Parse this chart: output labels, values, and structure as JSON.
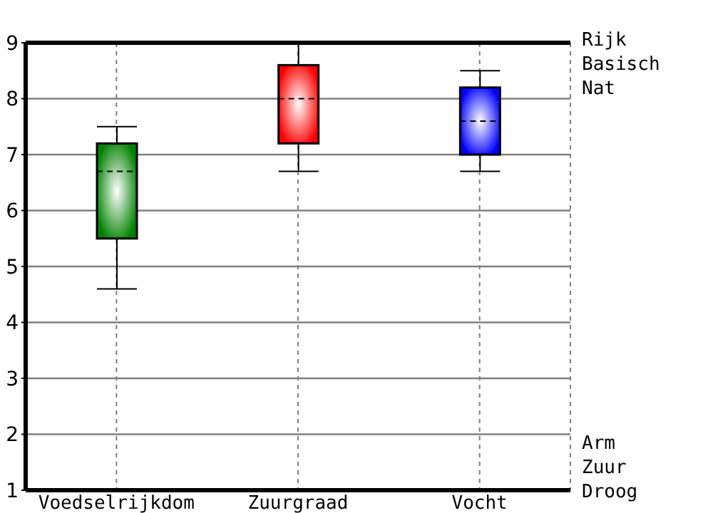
{
  "chart_data": {
    "type": "box",
    "categories": [
      "Voedselrijkdom",
      "Zuurgraad",
      "Vocht"
    ],
    "boxes": [
      {
        "low": 4.6,
        "q1": 5.5,
        "median": 6.7,
        "q3": 7.2,
        "high": 7.5
      },
      {
        "low": 6.7,
        "q1": 7.2,
        "median": 8.0,
        "q3": 8.6,
        "high": 9.0
      },
      {
        "low": 6.7,
        "q1": 7.0,
        "median": 7.6,
        "q3": 8.2,
        "high": 8.5
      }
    ],
    "colors": [
      "#008000",
      "#ff0000",
      "#0000ff"
    ],
    "ylim": [
      1,
      9
    ],
    "yticks": [
      1,
      2,
      3,
      4,
      5,
      6,
      7,
      8,
      9
    ],
    "grid": true,
    "line_style": "dashed",
    "annotations": [
      "Rijk\nBasisch\nNat",
      "Arm\nZuur\nDroog"
    ]
  }
}
